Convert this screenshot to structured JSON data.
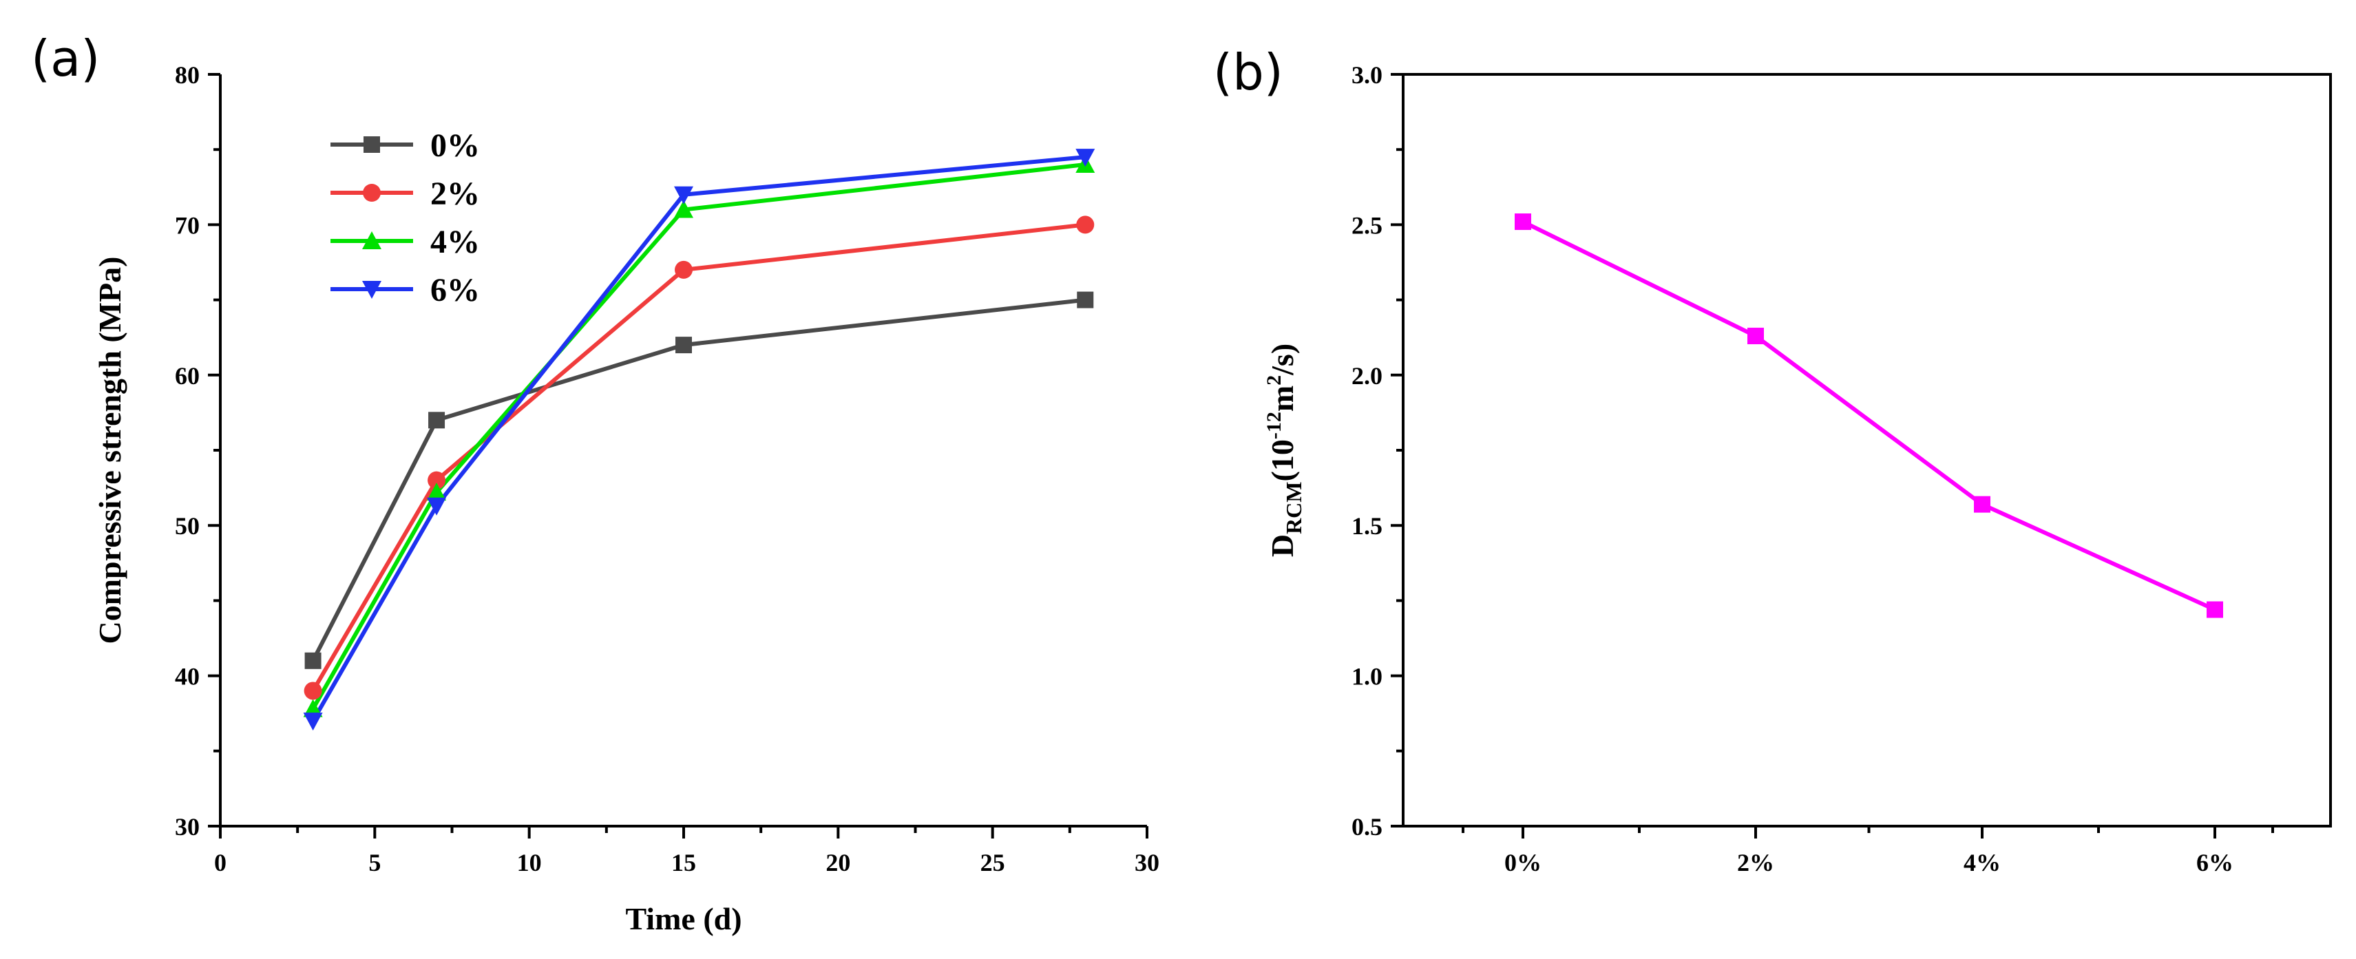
{
  "figure": {
    "panel_a_label": "(a)",
    "panel_b_label": "(b)"
  },
  "chart_data": [
    {
      "id": "a",
      "type": "line",
      "title": "",
      "xlabel": "Time (d)",
      "ylabel": "Compressive strength (MPa)",
      "xlim": [
        0,
        30
      ],
      "ylim": [
        30,
        80
      ],
      "xticks": [
        0,
        5,
        10,
        15,
        20,
        25,
        30
      ],
      "yticks": [
        30,
        40,
        50,
        60,
        70,
        80
      ],
      "grid": false,
      "legend_position": "top-left",
      "x": [
        3,
        7,
        15,
        28
      ],
      "series": [
        {
          "name": "0%",
          "color": "#4a4a4a",
          "marker": "square",
          "values": [
            41,
            57,
            62,
            65
          ]
        },
        {
          "name": "2%",
          "color": "#f03c3c",
          "marker": "circle",
          "values": [
            39,
            53,
            67,
            70
          ]
        },
        {
          "name": "4%",
          "color": "#00e000",
          "marker": "triangle-up",
          "values": [
            37.8,
            52.2,
            71,
            74
          ]
        },
        {
          "name": "6%",
          "color": "#1e32f0",
          "marker": "triangle-down",
          "values": [
            37,
            51.3,
            72,
            74.5
          ]
        }
      ]
    },
    {
      "id": "b",
      "type": "line",
      "title": "",
      "xlabel": "",
      "ylabel_main": "D",
      "ylabel_sub": "RCM",
      "ylabel_open": "(10",
      "ylabel_exp": "-12",
      "ylabel_m": "m",
      "ylabel_m_exp": "2",
      "ylabel_close": "/s)",
      "categories": [
        "0%",
        "2%",
        "4%",
        "6%"
      ],
      "ylim": [
        0.5,
        3.0
      ],
      "yticks": [
        "0.5",
        "1.0",
        "1.5",
        "2.0",
        "2.5",
        "3.0"
      ],
      "grid": false,
      "series": [
        {
          "name": "DRCM",
          "color": "#ff00ff",
          "marker": "square",
          "values": [
            2.51,
            2.13,
            1.57,
            1.22
          ]
        }
      ]
    }
  ]
}
